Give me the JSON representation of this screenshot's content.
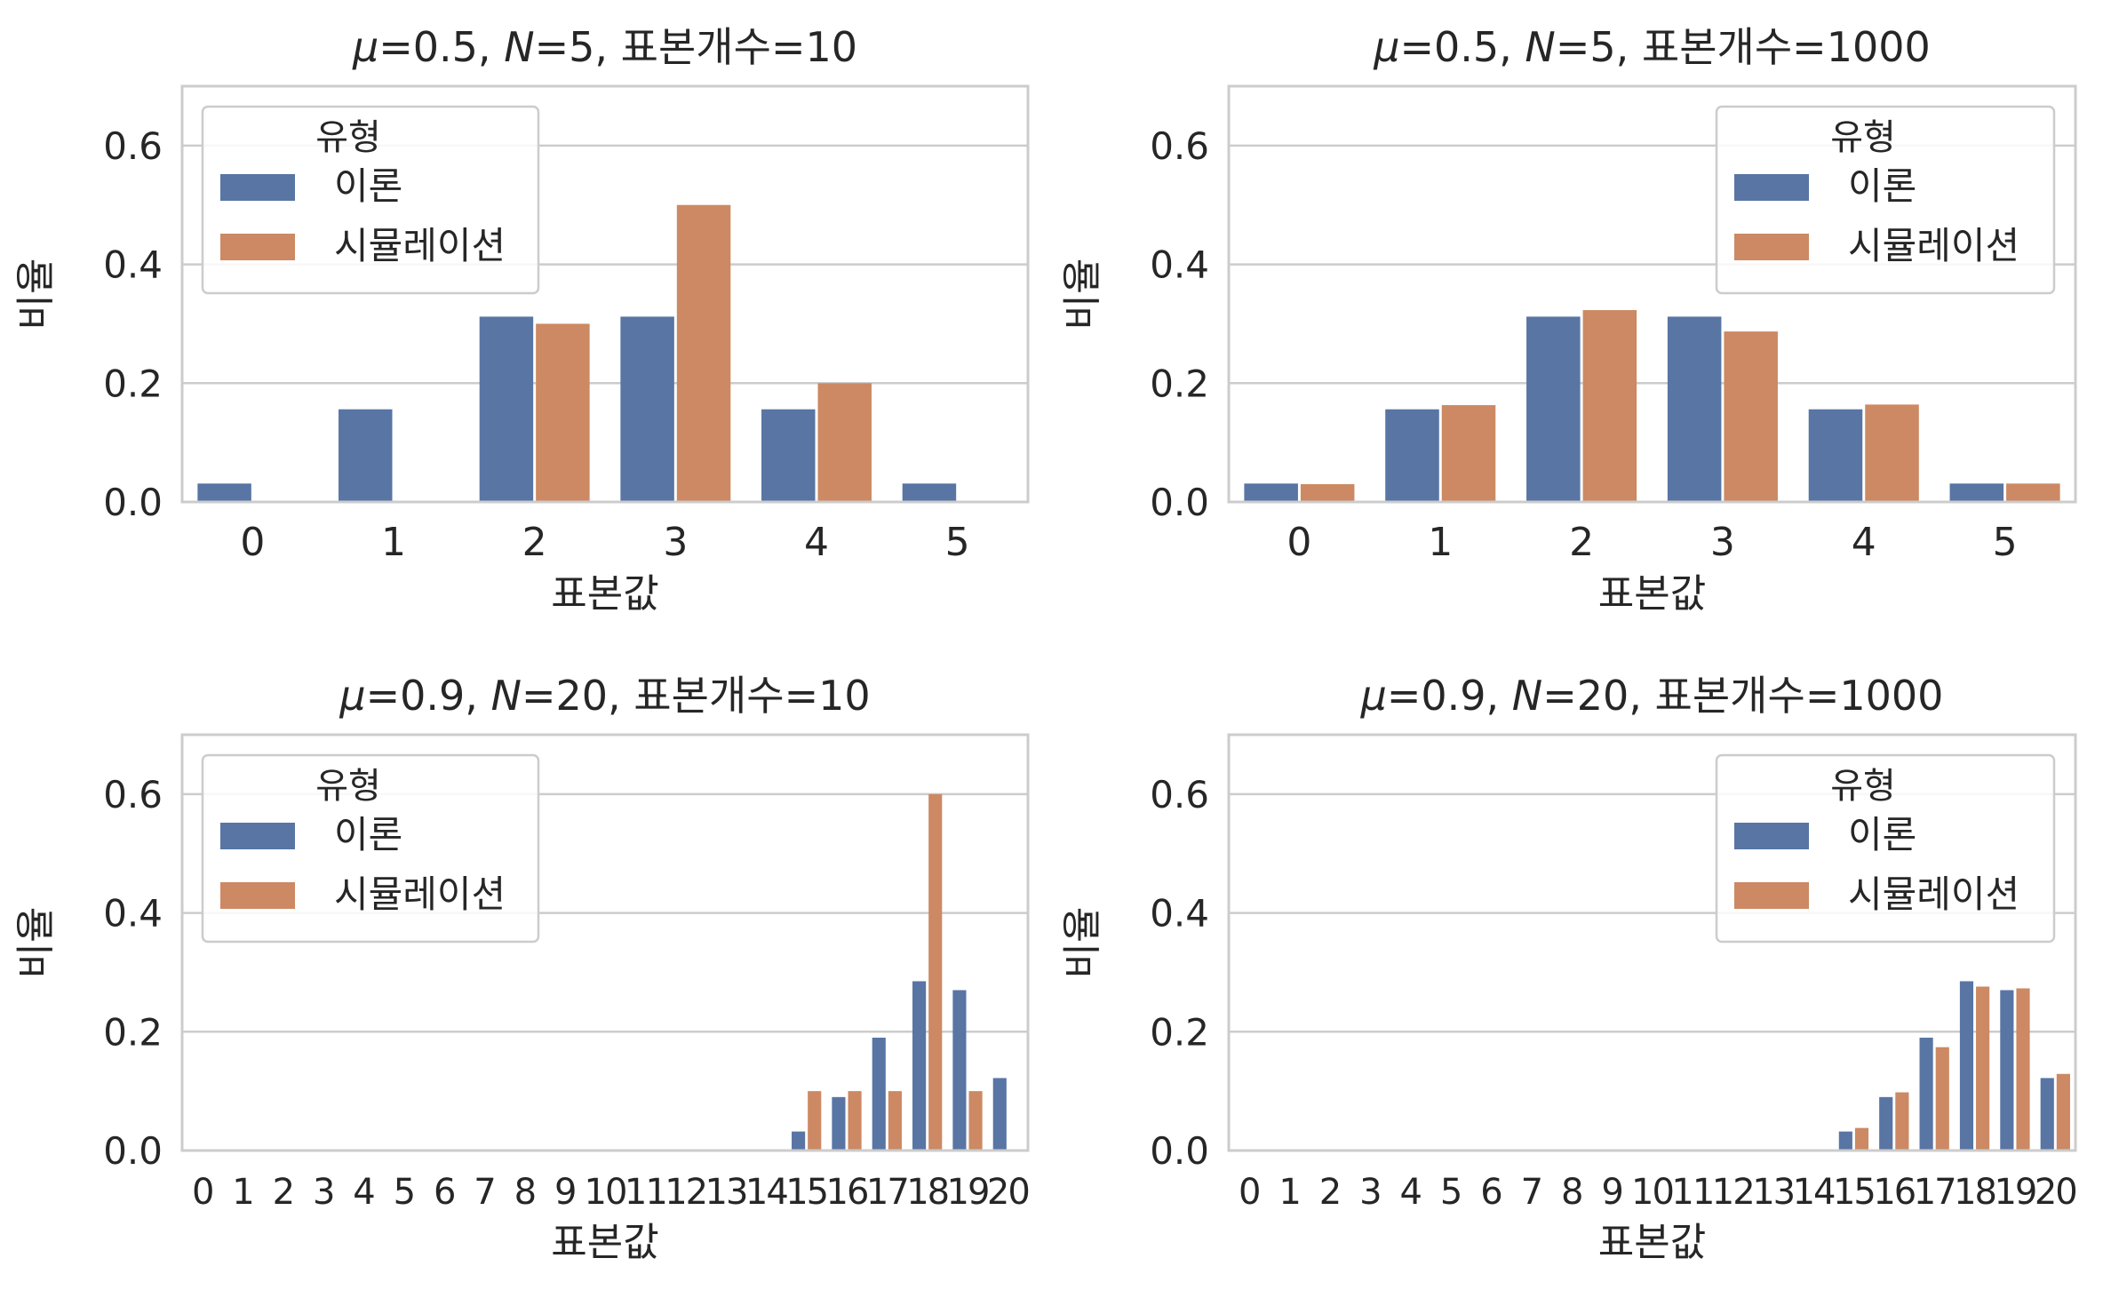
{
  "colors": {
    "theory": "#5875a4",
    "simulation": "#cc8963",
    "grid": "#cccccc",
    "text": "#262626"
  },
  "chart_data": [
    {
      "type": "bar",
      "title": "μ=0.5, N=5, 표본개수=10",
      "xlabel": "표본값",
      "ylabel": "비율",
      "ylim": [
        0,
        0.7
      ],
      "yticks": [
        "0.0",
        "0.2",
        "0.4",
        "0.6"
      ],
      "categories": [
        "0",
        "1",
        "2",
        "3",
        "4",
        "5"
      ],
      "legend": {
        "title": "유형",
        "position": "upper-left"
      },
      "grid": true,
      "series": [
        {
          "name": "이론",
          "values": [
            0.031,
            0.156,
            0.312,
            0.312,
            0.156,
            0.031
          ]
        },
        {
          "name": "시뮬레이션",
          "values": [
            0.0,
            0.0,
            0.3,
            0.5,
            0.2,
            0.0
          ]
        }
      ]
    },
    {
      "type": "bar",
      "title": "μ=0.5, N=5, 표본개수=1000",
      "xlabel": "표본값",
      "ylabel": "비율",
      "ylim": [
        0,
        0.7
      ],
      "yticks": [
        "0.0",
        "0.2",
        "0.4",
        "0.6"
      ],
      "categories": [
        "0",
        "1",
        "2",
        "3",
        "4",
        "5"
      ],
      "legend": {
        "title": "유형",
        "position": "upper-right"
      },
      "grid": true,
      "series": [
        {
          "name": "이론",
          "values": [
            0.031,
            0.156,
            0.312,
            0.312,
            0.156,
            0.031
          ]
        },
        {
          "name": "시뮬레이션",
          "values": [
            0.03,
            0.163,
            0.323,
            0.287,
            0.164,
            0.031
          ]
        }
      ]
    },
    {
      "type": "bar",
      "title": "μ=0.9, N=20, 표본개수=10",
      "xlabel": "표본값",
      "ylabel": "비율",
      "ylim": [
        0,
        0.7
      ],
      "yticks": [
        "0.0",
        "0.2",
        "0.4",
        "0.6"
      ],
      "categories": [
        "0",
        "1",
        "2",
        "3",
        "4",
        "5",
        "6",
        "7",
        "8",
        "9",
        "10",
        "11",
        "12",
        "13",
        "14",
        "15",
        "16",
        "17",
        "18",
        "19",
        "20"
      ],
      "legend": {
        "title": "유형",
        "position": "upper-left"
      },
      "grid": true,
      "series": [
        {
          "name": "이론",
          "values": [
            0,
            0,
            0,
            0,
            0,
            0,
            0,
            0,
            0,
            0,
            0,
            0,
            0,
            0.0003,
            0.002,
            0.032,
            0.09,
            0.19,
            0.285,
            0.27,
            0.122
          ]
        },
        {
          "name": "시뮬레이션",
          "values": [
            0,
            0,
            0,
            0,
            0,
            0,
            0,
            0,
            0,
            0,
            0,
            0,
            0,
            0,
            0,
            0.1,
            0.1,
            0.1,
            0.6,
            0.1,
            0.0
          ]
        }
      ]
    },
    {
      "type": "bar",
      "title": "μ=0.9, N=20, 표본개수=1000",
      "xlabel": "표본값",
      "ylabel": "비율",
      "ylim": [
        0,
        0.7
      ],
      "yticks": [
        "0.0",
        "0.2",
        "0.4",
        "0.6"
      ],
      "categories": [
        "0",
        "1",
        "2",
        "3",
        "4",
        "5",
        "6",
        "7",
        "8",
        "9",
        "10",
        "11",
        "12",
        "13",
        "14",
        "15",
        "16",
        "17",
        "18",
        "19",
        "20"
      ],
      "legend": {
        "title": "유형",
        "position": "upper-right"
      },
      "grid": true,
      "series": [
        {
          "name": "이론",
          "values": [
            0,
            0,
            0,
            0,
            0,
            0,
            0,
            0,
            0,
            0,
            0,
            0,
            0,
            0.0003,
            0.002,
            0.032,
            0.09,
            0.19,
            0.285,
            0.27,
            0.122
          ]
        },
        {
          "name": "시뮬레이션",
          "values": [
            0,
            0,
            0,
            0,
            0,
            0,
            0,
            0,
            0,
            0,
            0,
            0,
            0,
            0,
            0,
            0.038,
            0.098,
            0.174,
            0.276,
            0.273,
            0.129
          ]
        }
      ]
    }
  ]
}
